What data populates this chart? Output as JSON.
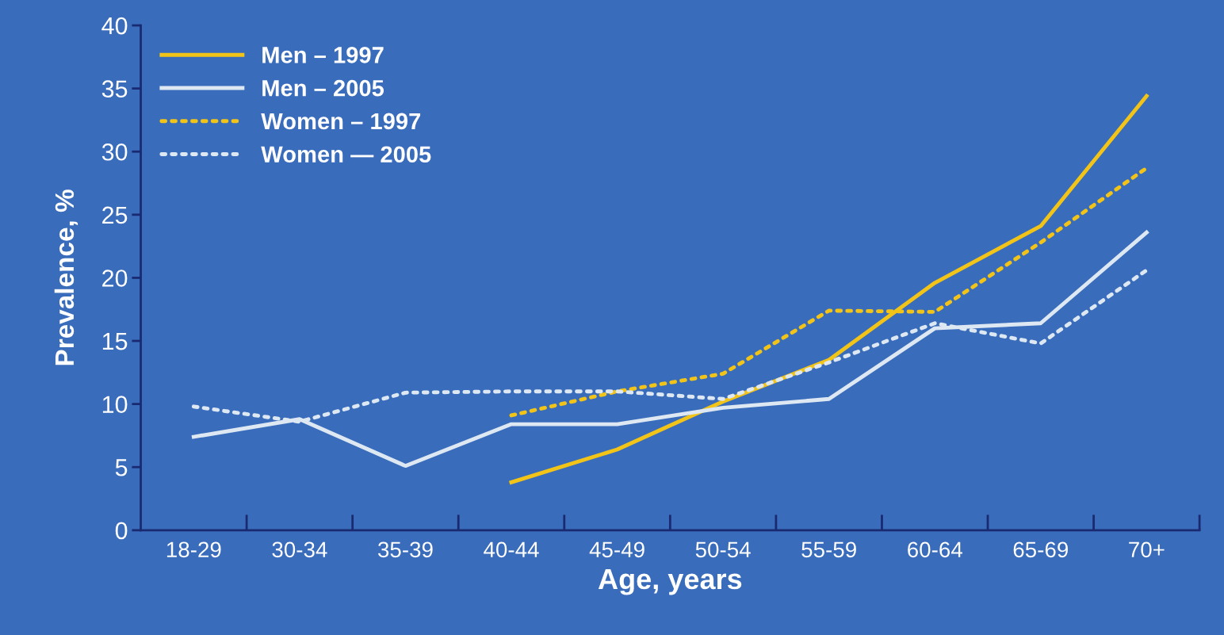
{
  "chart_data": {
    "type": "line",
    "xlabel": "Age, years",
    "ylabel": "Prevalence, %",
    "categories": [
      "18-29",
      "30-34",
      "35-39",
      "40-44",
      "45-49",
      "50-54",
      "55-59",
      "60-64",
      "65-69",
      "70+"
    ],
    "series": [
      {
        "name": "Men – 1997",
        "color": "#f2c418",
        "line_style": "solid",
        "values": [
          null,
          null,
          null,
          3.8,
          6.4,
          10.2,
          13.5,
          19.6,
          24.1,
          34.4
        ]
      },
      {
        "name": "Men – 2005",
        "color": "#dde8f2",
        "line_style": "solid",
        "values": [
          7.4,
          8.8,
          5.1,
          8.4,
          8.4,
          9.7,
          10.4,
          16.0,
          16.4,
          23.6
        ]
      },
      {
        "name": "Women – 1997",
        "color": "#f2c418",
        "line_style": "dotted",
        "values": [
          null,
          null,
          null,
          9.1,
          11.0,
          12.4,
          17.4,
          17.3,
          22.8,
          28.7
        ]
      },
      {
        "name": "Women — 2005",
        "color": "#dde8f2",
        "line_style": "dotted",
        "values": [
          9.8,
          8.6,
          10.9,
          11.0,
          11.0,
          10.4,
          13.3,
          16.4,
          14.8,
          20.6
        ]
      }
    ],
    "ylim": [
      0,
      40
    ],
    "yticks": [
      0,
      5,
      10,
      15,
      20,
      25,
      30,
      35,
      40
    ],
    "grid": false,
    "legend": "top left",
    "marker": "none"
  }
}
